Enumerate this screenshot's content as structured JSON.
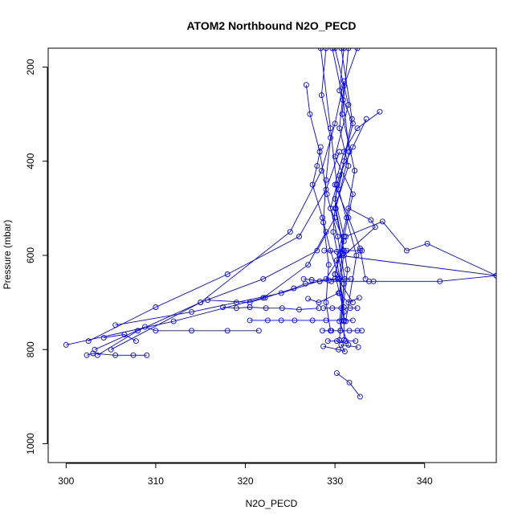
{
  "chart_data": {
    "type": "line",
    "title": "ATOM2 Northbound N2O_PECD",
    "xlabel": "N2O_PECD",
    "ylabel": "Pressure (mbar)",
    "xlim": [
      298,
      348
    ],
    "ylim": [
      1040,
      160
    ],
    "y_reversed": true,
    "x_ticks": [
      300,
      310,
      320,
      330,
      340
    ],
    "y_ticks": [
      200,
      400,
      600,
      800,
      1000
    ],
    "series_color": "#0000ff",
    "marker": "open-circle",
    "series": [
      {
        "x": [
          331,
          330.5,
          332,
          331,
          330,
          331,
          330,
          331,
          331
        ],
        "y": [
          160,
          250,
          320,
          400,
          480,
          560,
          640,
          720,
          780
        ]
      },
      {
        "x": [
          332.5,
          331,
          330.5,
          331.5,
          330,
          331,
          330.5
        ],
        "y": [
          160,
          240,
          330,
          410,
          500,
          590,
          680
        ]
      },
      {
        "x": [
          329,
          328.5,
          329.5,
          329,
          328.7,
          329.3,
          329,
          329.5
        ],
        "y": [
          160,
          260,
          350,
          440,
          530,
          620,
          700,
          760
        ]
      },
      {
        "x": [
          330,
          331.5,
          330,
          332,
          331,
          330.5,
          331
        ],
        "y": [
          160,
          280,
          390,
          470,
          560,
          650,
          740
        ]
      },
      {
        "x": [
          331.5,
          330.8,
          332.2,
          331.3,
          330.2,
          331
        ],
        "y": [
          160,
          300,
          420,
          520,
          610,
          710
        ]
      },
      {
        "x": [
          328.4,
          329.5,
          330.2,
          329.8,
          331,
          330.5
        ],
        "y": [
          160,
          330,
          450,
          550,
          660,
          780
        ]
      },
      {
        "x": [
          330.7,
          331.9,
          330.4,
          332.4,
          331.2
        ],
        "y": [
          160,
          310,
          460,
          600,
          740
        ]
      },
      {
        "x": [
          329.7,
          330.9,
          331.6,
          330.1,
          331.4,
          330.6
        ],
        "y": [
          160,
          270,
          380,
          500,
          630,
          760
        ]
      },
      {
        "x": [
          326.8,
          327.2,
          328.3,
          329.1,
          330.3,
          331.1,
          330.5,
          331.5
        ],
        "y": [
          238,
          300,
          380,
          470,
          560,
          650,
          740,
          790
        ]
      },
      {
        "x": [
          335,
          332.5,
          331,
          330,
          331.5,
          332.8,
          333.4
        ],
        "y": [
          295,
          330,
          380,
          450,
          520,
          585,
          650
        ]
      },
      {
        "x": [
          333.5,
          332,
          330.5,
          329.5,
          331,
          330,
          332
        ],
        "y": [
          310,
          370,
          430,
          500,
          570,
          640,
          700
        ]
      },
      {
        "x": [
          328.4,
          328,
          327.5,
          328.6,
          329.5,
          330.5
        ],
        "y": [
          370,
          410,
          450,
          520,
          590,
          650
        ]
      },
      {
        "x": [
          305,
          315,
          325,
          328.5,
          330,
          331
        ],
        "y": [
          800,
          700,
          550,
          420,
          320,
          230
        ]
      },
      {
        "x": [
          302.5,
          310,
          318,
          326,
          329,
          330.5
        ],
        "y": [
          782,
          710,
          640,
          560,
          460,
          380
        ]
      },
      {
        "x": [
          303.5,
          308,
          315,
          322,
          328,
          330
        ],
        "y": [
          812,
          760,
          700,
          650,
          590,
          520
        ]
      },
      {
        "x": [
          300,
          312,
          322,
          327,
          329
        ],
        "y": [
          790,
          740,
          690,
          620,
          550
        ]
      },
      {
        "x": [
          305.5,
          314,
          319,
          324,
          329,
          331
        ],
        "y": [
          748,
          720,
          700,
          680,
          650,
          590
        ]
      },
      {
        "x": [
          303.2,
          308.8,
          310,
          314,
          318,
          321.5
        ],
        "y": [
          800,
          752,
          760,
          760,
          760,
          760
        ]
      },
      {
        "x": [
          302.3,
          303,
          305.5,
          307.5,
          309
        ],
        "y": [
          812,
          808,
          812,
          812,
          812
        ]
      },
      {
        "x": [
          304.2,
          306.5,
          307.8
        ],
        "y": [
          775,
          768,
          782
        ]
      },
      {
        "x": [
          317.5,
          319,
          320.5,
          322.3,
          324.1,
          326,
          328.2
        ],
        "y": [
          710,
          712,
          710,
          712,
          712,
          715,
          712
        ]
      },
      {
        "x": [
          320.5,
          322.5,
          324,
          325.5,
          327.5,
          329,
          331,
          332
        ],
        "y": [
          738,
          738,
          738,
          738,
          738,
          738,
          738,
          738
        ]
      },
      {
        "x": [
          315.8,
          320.5,
          322.2,
          325.4,
          326.7,
          328.3,
          330
        ],
        "y": [
          695,
          700,
          690,
          670,
          660,
          655,
          650
        ]
      },
      {
        "x": [
          326.5,
          327.4,
          328.3,
          329.3,
          330.3,
          331.8
        ],
        "y": [
          650,
          652,
          655,
          653,
          650,
          650
        ]
      },
      {
        "x": [
          329.6,
          333.8,
          334.3,
          341.7,
          348
        ],
        "y": [
          655,
          655,
          655,
          655,
          643
        ]
      },
      {
        "x": [
          331.2,
          335.3,
          338,
          340.3,
          348,
          330.5
        ],
        "y": [
          560,
          528,
          590,
          575,
          643,
          600
        ]
      },
      {
        "x": [
          331.5,
          334,
          334.5,
          331
        ],
        "y": [
          500,
          525,
          540,
          600
        ]
      },
      {
        "x": [
          328.8,
          330.2,
          331.3,
          332.8,
          333
        ],
        "y": [
          590,
          592,
          590,
          590,
          590
        ]
      },
      {
        "x": [
          328.7,
          329.7,
          330.7,
          331.7,
          332.5
        ],
        "y": [
          712,
          712,
          712,
          712,
          712
        ]
      },
      {
        "x": [
          328.6,
          329.6,
          330.6,
          331.6,
          332.5,
          333
        ],
        "y": [
          760,
          760,
          760,
          760,
          760,
          760
        ]
      },
      {
        "x": [
          329.2,
          330.2,
          331.2,
          332.3
        ],
        "y": [
          782,
          782,
          782,
          782
        ]
      },
      {
        "x": [
          328.7,
          330.4,
          331.1,
          330.7,
          332.6
        ],
        "y": [
          793,
          800,
          804,
          790,
          795
        ]
      },
      {
        "x": [
          327,
          328.2,
          330.4,
          331.5,
          332.7
        ],
        "y": [
          692,
          700,
          680,
          700,
          690
        ]
      },
      {
        "x": [
          330.2,
          331.6,
          332.8
        ],
        "y": [
          850,
          870,
          900
        ]
      }
    ]
  }
}
